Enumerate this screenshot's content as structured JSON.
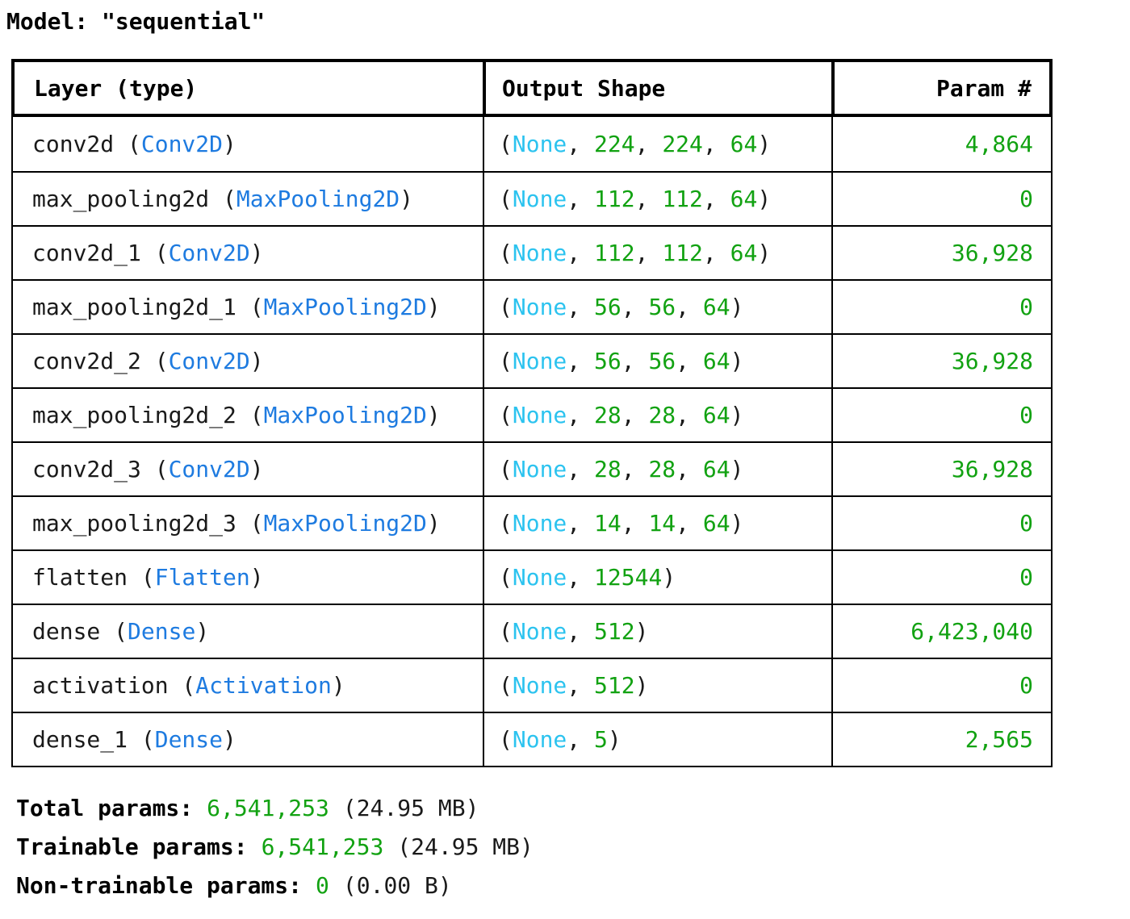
{
  "title": "Model: \"sequential\"",
  "colors": {
    "blue": "#1e7be0",
    "cyan": "#2cc3ef",
    "green": "#12a212",
    "text": "#1a1a1a",
    "border": "#000000",
    "bg": "#ffffff"
  },
  "table": {
    "columns": [
      {
        "label": "Layer (type)",
        "align": "left"
      },
      {
        "label": "Output Shape",
        "align": "left"
      },
      {
        "label": "Param #",
        "align": "right"
      }
    ],
    "rows": [
      {
        "name": "conv2d",
        "class": "Conv2D",
        "shape": [
          "None",
          "224",
          "224",
          "64"
        ],
        "params": "4,864"
      },
      {
        "name": "max_pooling2d",
        "class": "MaxPooling2D",
        "shape": [
          "None",
          "112",
          "112",
          "64"
        ],
        "params": "0"
      },
      {
        "name": "conv2d_1",
        "class": "Conv2D",
        "shape": [
          "None",
          "112",
          "112",
          "64"
        ],
        "params": "36,928"
      },
      {
        "name": "max_pooling2d_1",
        "class": "MaxPooling2D",
        "shape": [
          "None",
          "56",
          "56",
          "64"
        ],
        "params": "0"
      },
      {
        "name": "conv2d_2",
        "class": "Conv2D",
        "shape": [
          "None",
          "56",
          "56",
          "64"
        ],
        "params": "36,928"
      },
      {
        "name": "max_pooling2d_2",
        "class": "MaxPooling2D",
        "shape": [
          "None",
          "28",
          "28",
          "64"
        ],
        "params": "0"
      },
      {
        "name": "conv2d_3",
        "class": "Conv2D",
        "shape": [
          "None",
          "28",
          "28",
          "64"
        ],
        "params": "36,928"
      },
      {
        "name": "max_pooling2d_3",
        "class": "MaxPooling2D",
        "shape": [
          "None",
          "14",
          "14",
          "64"
        ],
        "params": "0"
      },
      {
        "name": "flatten",
        "class": "Flatten",
        "shape": [
          "None",
          "12544"
        ],
        "params": "0"
      },
      {
        "name": "dense",
        "class": "Dense",
        "shape": [
          "None",
          "512"
        ],
        "params": "6,423,040"
      },
      {
        "name": "activation",
        "class": "Activation",
        "shape": [
          "None",
          "512"
        ],
        "params": "0"
      },
      {
        "name": "dense_1",
        "class": "Dense",
        "shape": [
          "None",
          "5"
        ],
        "params": "2,565"
      }
    ]
  },
  "summary": {
    "lines": [
      {
        "label": "Total params:",
        "value": "6,541,253",
        "suffix": "(24.95 MB)"
      },
      {
        "label": "Trainable params:",
        "value": "6,541,253",
        "suffix": "(24.95 MB)"
      },
      {
        "label": "Non-trainable params:",
        "value": "0",
        "suffix": "(0.00 B)"
      }
    ]
  }
}
